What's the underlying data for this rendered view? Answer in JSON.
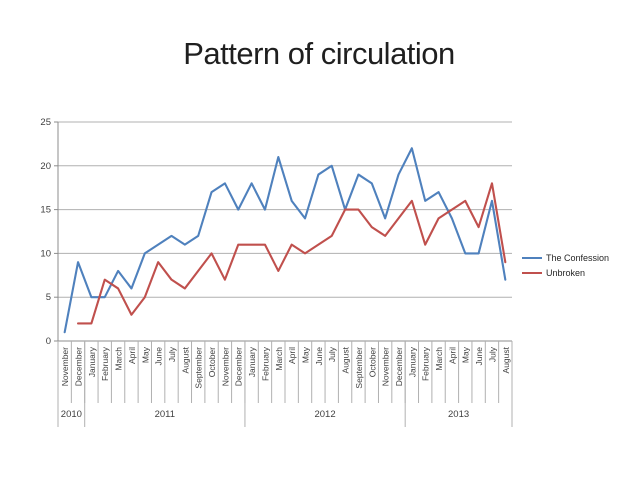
{
  "title": "Pattern of circulation",
  "chart_data": {
    "type": "line",
    "title": "Pattern of circulation",
    "xlabel": "",
    "ylabel": "",
    "ylim": [
      0,
      25
    ],
    "y_ticks": [
      0,
      5,
      10,
      15,
      20,
      25
    ],
    "grid": true,
    "legend_position": "right",
    "categories": [
      "November",
      "December",
      "January",
      "February",
      "March",
      "April",
      "May",
      "June",
      "July",
      "August",
      "September",
      "October",
      "November",
      "December",
      "January",
      "February",
      "March",
      "April",
      "May",
      "June",
      "July",
      "August",
      "September",
      "October",
      "November",
      "December",
      "January",
      "February",
      "March",
      "April",
      "May",
      "June",
      "July",
      "August"
    ],
    "year_groups": [
      {
        "year": "2010",
        "count": 2
      },
      {
        "year": "2011",
        "count": 12
      },
      {
        "year": "2012",
        "count": 12
      },
      {
        "year": "2013",
        "count": 8
      }
    ],
    "series": [
      {
        "name": "The Confession",
        "color": "#4F81BD",
        "values": [
          1,
          9,
          5,
          5,
          8,
          6,
          10,
          11,
          12,
          11,
          12,
          17,
          18,
          15,
          18,
          15,
          21,
          16,
          14,
          19,
          20,
          15,
          19,
          18,
          14,
          19,
          22,
          16,
          17,
          14,
          10,
          10,
          16,
          7
        ]
      },
      {
        "name": "Unbroken",
        "color": "#C0504D",
        "values": [
          null,
          2,
          2,
          7,
          6,
          3,
          5,
          9,
          7,
          6,
          8,
          10,
          7,
          11,
          11,
          11,
          8,
          11,
          10,
          11,
          12,
          15,
          15,
          13,
          12,
          14,
          16,
          11,
          14,
          15,
          16,
          13,
          18,
          9
        ]
      }
    ],
    "axis_color": "#8c8c8c",
    "gridline_color": "#b0b0b0",
    "label_color": "#3f3f3f"
  }
}
